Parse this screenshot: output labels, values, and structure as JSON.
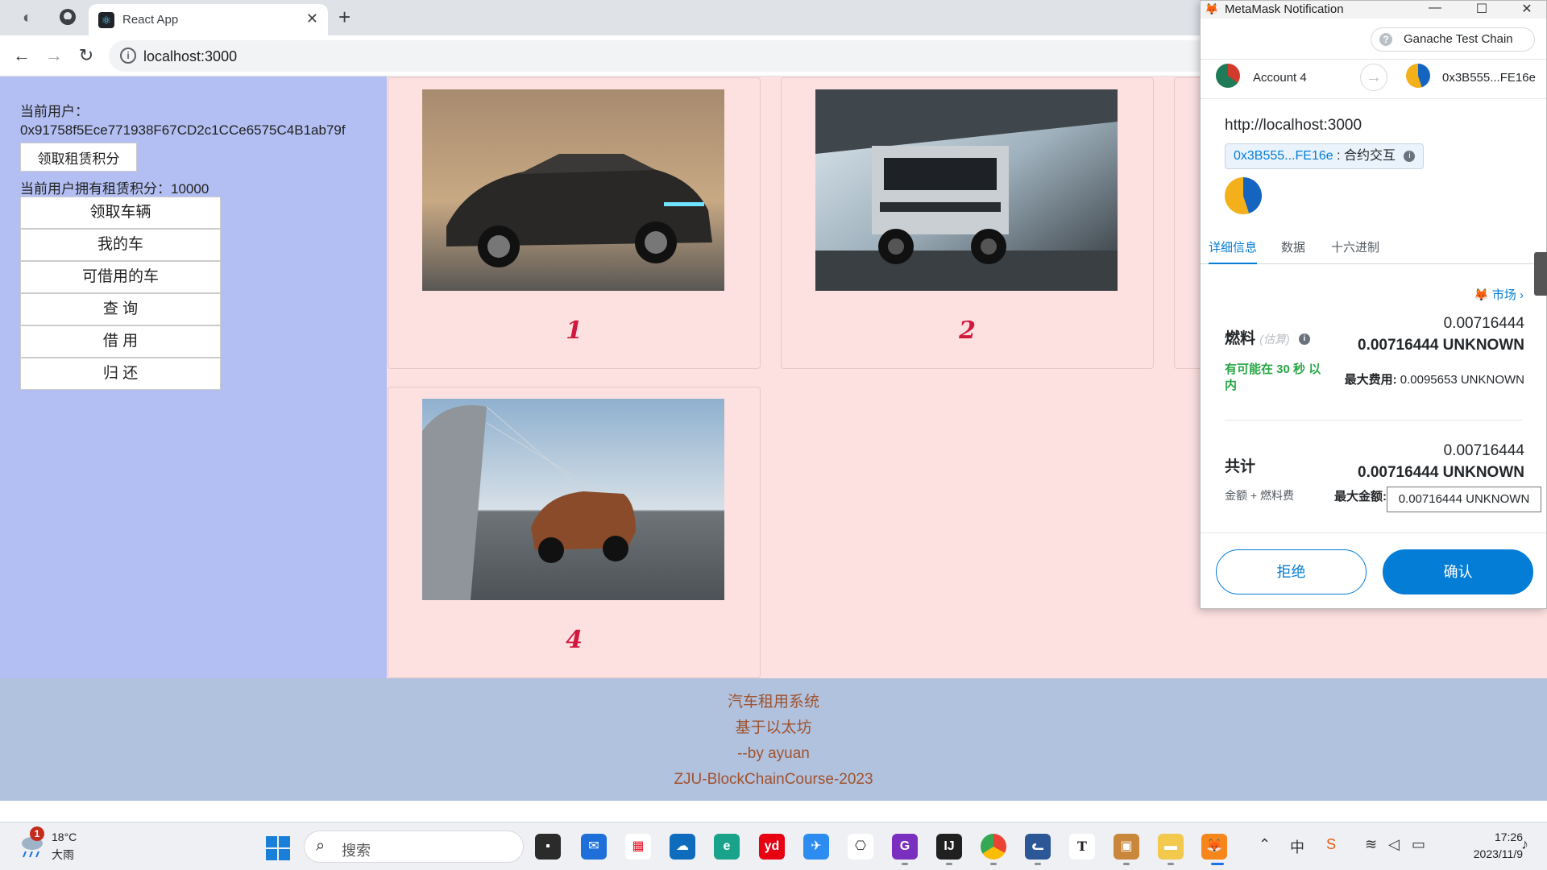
{
  "browser": {
    "tab_title": "React App",
    "tab_close": "✕",
    "new_tab": "+",
    "url": "localhost:3000"
  },
  "sidebar": {
    "current_user_label": "当前用户：",
    "user_address": "0x91758f5Ece771938F67CD2c1CCe6575C4B1ab79f",
    "claim_points_button": "领取租赁积分",
    "points_label": "当前用户拥有租赁积分：10000",
    "menu": [
      {
        "label": "领取车辆"
      },
      {
        "label": "我的车"
      },
      {
        "label": "可借用的车"
      },
      {
        "label": "查 询"
      },
      {
        "label": "借 用"
      },
      {
        "label": "归 还"
      }
    ]
  },
  "gallery": {
    "cards": [
      {
        "number": "1"
      },
      {
        "number": "2"
      },
      {
        "number": "4"
      }
    ]
  },
  "footer": {
    "line1": "汽车租用系统",
    "line2": "基于以太坊",
    "line3": "--by ayuan",
    "line4": "ZJU-BlockChainCourse-2023"
  },
  "metamask": {
    "window_title": "MetaMask Notification",
    "network": "Ganache Test Chain",
    "from_account": "Account 4",
    "to_address": "0x3B555...FE16e",
    "origin": "http://localhost:3000",
    "contract_address": "0x3B555...FE16e",
    "contract_sep": " : ",
    "contract_kind": "合约交互",
    "tabs": [
      "详细信息",
      "数据",
      "十六进制"
    ],
    "market_link": "市场",
    "gas_label": "燃料",
    "gas_estimated": "(估算)",
    "gas_value": "0.00716444",
    "gas_value_unit": "0.00716444 UNKNOWN",
    "gas_eta": "有可能在 30 秒 以内",
    "max_fee_label": "最大费用:",
    "max_fee_value": "0.0095653 UNKNOWN",
    "total_label": "共计",
    "total_value": "0.00716444",
    "total_value_unit": "0.00716444 UNKNOWN",
    "total_sub": "金额 + 燃料费",
    "max_amount_label": "最大金额:",
    "max_amount_value": "0.00716444 UNKNOWN",
    "reject_button": "拒绝",
    "confirm_button": "确认"
  },
  "taskbar": {
    "notification_count": "1",
    "temperature": "18°C",
    "weather": "大雨",
    "search_placeholder": "搜索",
    "time": "17:26",
    "date": "2023/11/9"
  },
  "colors": {
    "sidebar_bg": "#b3bff2",
    "gallery_bg": "#fde1e1",
    "footer_bg": "#b1c2df",
    "footer_text": "#a0522d",
    "card_number": "#d1193e",
    "metamask_blue": "#037dd6",
    "eta_green": "#28a745"
  }
}
